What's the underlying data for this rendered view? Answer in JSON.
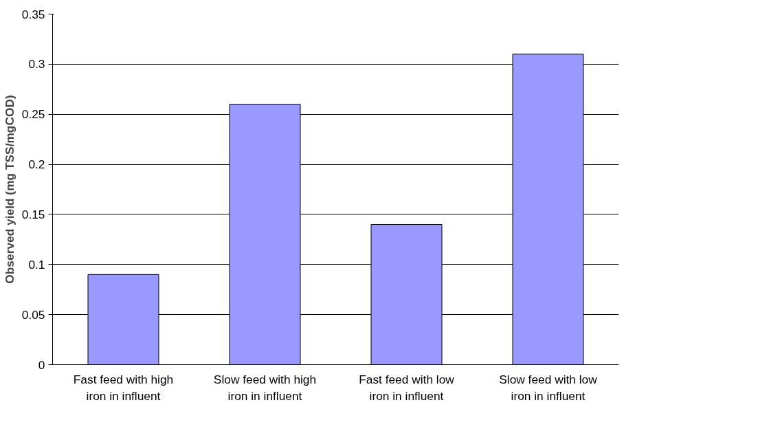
{
  "chart_data": {
    "type": "bar",
    "ylabel": "Observed yield (mg TSS/mgCOD)",
    "categories": [
      "Fast feed with high iron in influent",
      "Slow feed with high iron in influent",
      "Fast feed with low iron in influent",
      "Slow feed with low iron in influent"
    ],
    "values": [
      0.09,
      0.26,
      0.14,
      0.31
    ],
    "color": "#9999ff",
    "ylim": [
      0,
      0.35
    ],
    "yticks": [
      0,
      0.05,
      0.1,
      {
        "value": 0.15,
        "label": "0.15"
      },
      0.2,
      0.25,
      0.3,
      0.35
    ],
    "grid": "y"
  }
}
